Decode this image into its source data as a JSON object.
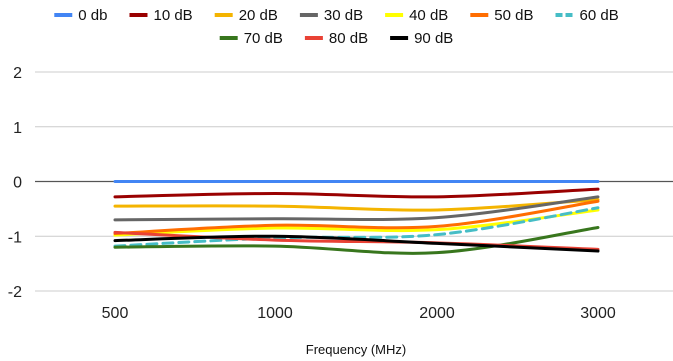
{
  "chart_data": {
    "type": "line",
    "xlabel": "Frequency (MHz)",
    "ylabel": "",
    "categories": [
      "500",
      "1000",
      "2000",
      "3000"
    ],
    "ylim": [
      -2,
      2
    ],
    "yticks": [
      2,
      1,
      0,
      -1,
      -2
    ],
    "grid": true,
    "legend_position": "top",
    "series": [
      {
        "name": "0 db",
        "color": "#4285f4",
        "dashed": false,
        "values": [
          0.0,
          0.0,
          0.0,
          0.0
        ]
      },
      {
        "name": "10 dB",
        "color": "#990000",
        "dashed": false,
        "values": [
          -0.28,
          -0.22,
          -0.28,
          -0.14
        ]
      },
      {
        "name": "20 dB",
        "color": "#f4b400",
        "dashed": false,
        "values": [
          -0.45,
          -0.45,
          -0.52,
          -0.33
        ]
      },
      {
        "name": "30 dB",
        "color": "#666666",
        "dashed": false,
        "values": [
          -0.7,
          -0.68,
          -0.66,
          -0.28
        ]
      },
      {
        "name": "40 dB",
        "color": "#ffff00",
        "dashed": false,
        "values": [
          -0.98,
          -0.85,
          -0.88,
          -0.52
        ]
      },
      {
        "name": "50 dB",
        "color": "#ff6d01",
        "dashed": false,
        "values": [
          -0.95,
          -0.8,
          -0.82,
          -0.36
        ]
      },
      {
        "name": "60 dB",
        "color": "#46bdc6",
        "dashed": true,
        "values": [
          -1.18,
          -1.03,
          -0.97,
          -0.48
        ]
      },
      {
        "name": "70 dB",
        "color": "#38761d",
        "dashed": false,
        "values": [
          -1.2,
          -1.18,
          -1.3,
          -0.84
        ]
      },
      {
        "name": "80 dB",
        "color": "#e94235",
        "dashed": false,
        "values": [
          -0.93,
          -1.07,
          -1.12,
          -1.24
        ]
      },
      {
        "name": "90 dB",
        "color": "#000000",
        "dashed": false,
        "values": [
          -1.08,
          -1.0,
          -1.13,
          -1.27
        ]
      }
    ]
  }
}
